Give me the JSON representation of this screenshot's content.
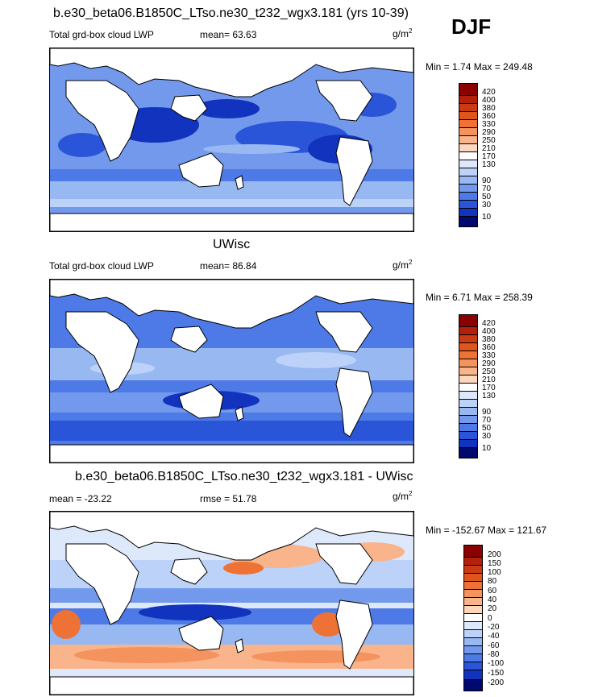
{
  "header": {
    "title": "b.e30_beta06.B1850C_LTso.ne30_t232_wgx3.181 (yrs 10-39)",
    "season": "DJF"
  },
  "panels": [
    {
      "left_label": "Total grd-box cloud LWP",
      "stat": "mean=  63.63",
      "units_base": "g/m",
      "units_exp": "2",
      "minmax": "Min =   1.74 Max = 249.48",
      "legend_colors": [
        "#8b0000",
        "#b3200c",
        "#cc3a14",
        "#e0551c",
        "#ee7236",
        "#f5935e",
        "#fab48c",
        "#fcd6bd",
        "#ffffff",
        "#dde8fb",
        "#bcd2f8",
        "#98b8f2",
        "#7299ec",
        "#4d7ae6",
        "#2a55d8",
        "#1233bd",
        "#041e96",
        "#000a6e"
      ],
      "legend_labels": [
        "420",
        "400",
        "380",
        "360",
        "330",
        "290",
        "250",
        "210",
        "170",
        "130",
        "90",
        "70",
        "50",
        "30",
        "10"
      ],
      "colors": {
        "ocean_light": "#98b8f2",
        "ocean_mid": "#4d7ae6",
        "ocean_dark": "#1233bd"
      }
    },
    {
      "section_title": "UWisc",
      "left_label": "Total grd-box cloud LWP",
      "stat": "mean=  86.84",
      "units_base": "g/m",
      "units_exp": "2",
      "minmax": "Min =   6.71 Max = 258.39",
      "legend_colors": [
        "#8b0000",
        "#b3200c",
        "#cc3a14",
        "#e0551c",
        "#ee7236",
        "#f5935e",
        "#fab48c",
        "#fcd6bd",
        "#ffffff",
        "#dde8fb",
        "#bcd2f8",
        "#98b8f2",
        "#7299ec",
        "#4d7ae6",
        "#2a55d8",
        "#1233bd",
        "#041e96",
        "#000a6e"
      ],
      "legend_labels": [
        "420",
        "400",
        "380",
        "360",
        "330",
        "290",
        "250",
        "210",
        "170",
        "130",
        "90",
        "70",
        "50",
        "30",
        "10"
      ],
      "colors": {
        "ocean_light": "#98b8f2",
        "ocean_mid": "#4d7ae6",
        "ocean_dark": "#2a55d8"
      }
    },
    {
      "section_title": "b.e30_beta06.B1850C_LTso.ne30_t232_wgx3.181 - UWisc",
      "left_label": "mean = -23.22",
      "stat": "rmse =  51.78",
      "units_base": "g/m",
      "units_exp": "2",
      "minmax": "Min = -152.67 Max = 121.67",
      "legend_colors": [
        "#8b0000",
        "#b3200c",
        "#cc3a14",
        "#e0551c",
        "#ee7236",
        "#f5935e",
        "#fab48c",
        "#fcd6bd",
        "#ffffff",
        "#dde8fb",
        "#bcd2f8",
        "#98b8f2",
        "#7299ec",
        "#4d7ae6",
        "#2a55d8",
        "#1233bd",
        "#041e96",
        "#000a6e"
      ],
      "legend_labels": [
        "200",
        "150",
        "100",
        "80",
        "60",
        "40",
        "20",
        "0",
        "-20",
        "-40",
        "-60",
        "-80",
        "-100",
        "-150",
        "-200"
      ],
      "colors": {
        "pos_light": "#fab48c",
        "pos_mid": "#ee7236",
        "neg_light": "#bcd2f8",
        "neg_mid": "#7299ec",
        "neg_dark": "#1233bd"
      }
    }
  ]
}
